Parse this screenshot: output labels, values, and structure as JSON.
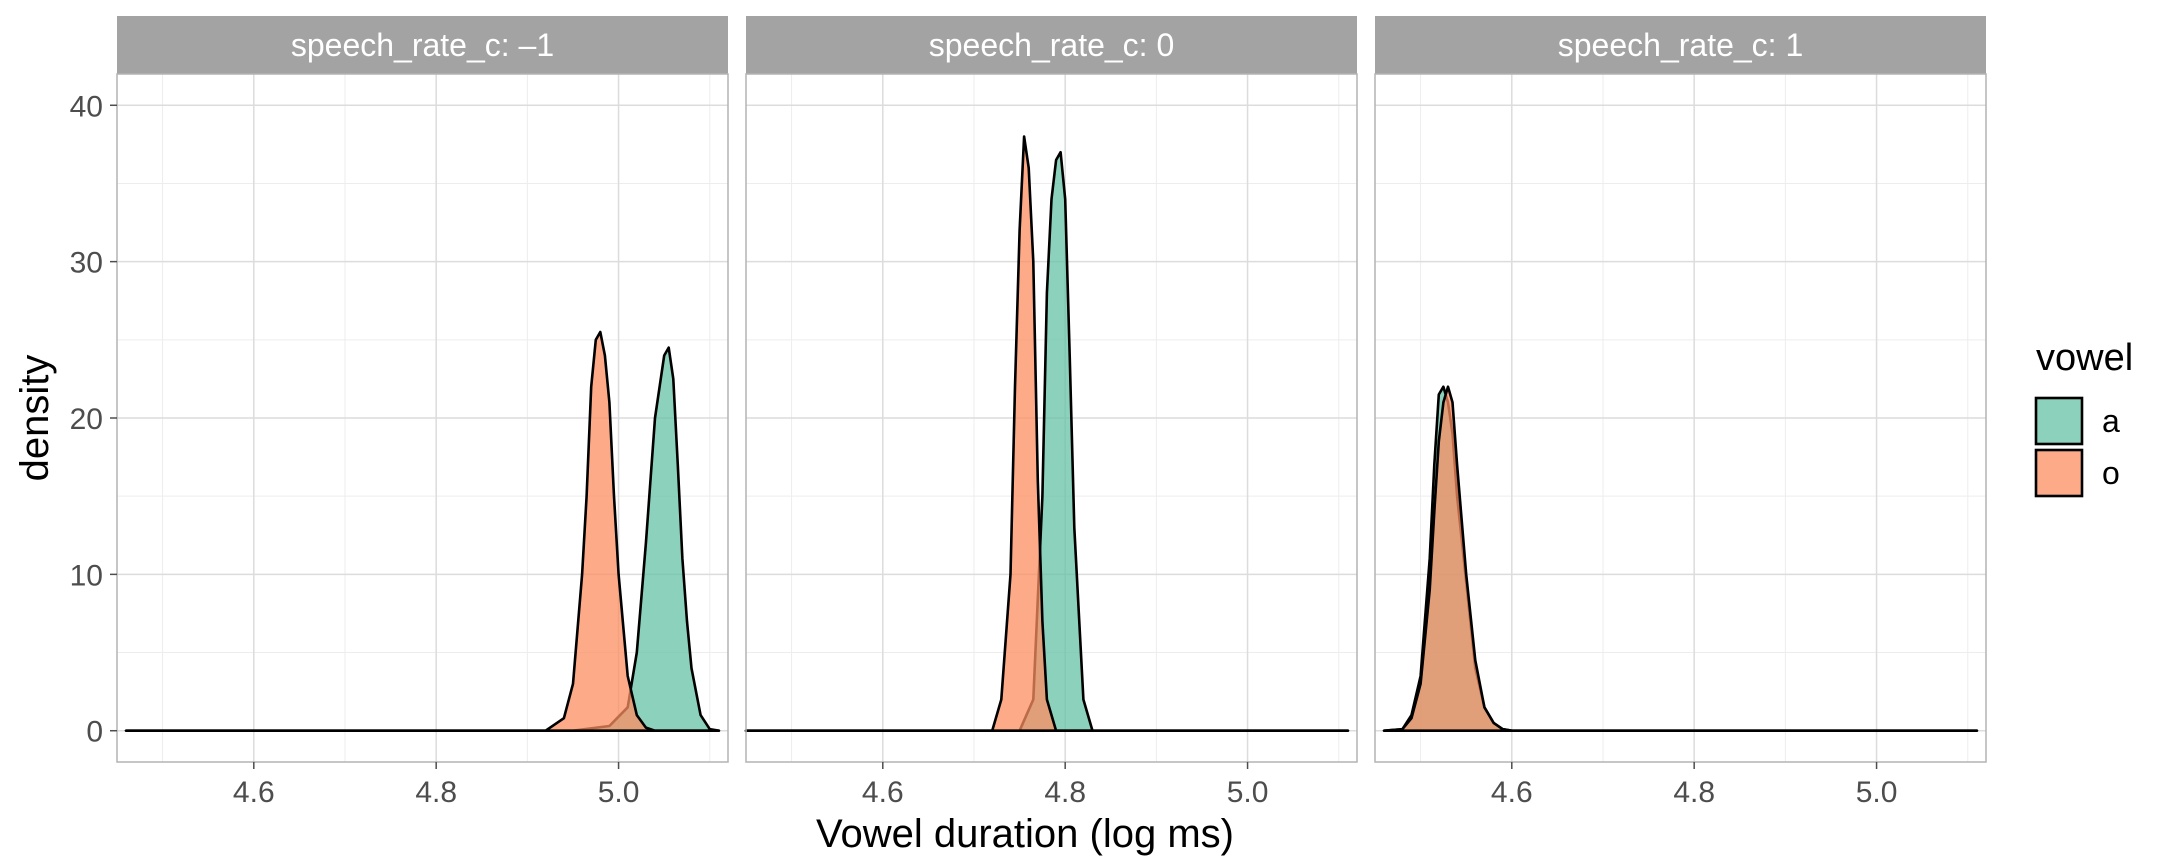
{
  "chart_data": {
    "type": "area",
    "subtype": "faceted density plot",
    "xlabel": "Vowel duration (log ms)",
    "ylabel": "density",
    "xlim": [
      4.45,
      5.12
    ],
    "ylim": [
      -2,
      42
    ],
    "x_ticks": [
      "4.6",
      "4.8",
      "5.0"
    ],
    "x_tick_values": [
      4.6,
      4.8,
      5.0
    ],
    "y_ticks": [
      "0",
      "10",
      "20",
      "30",
      "40"
    ],
    "y_tick_values": [
      0,
      10,
      20,
      30,
      40
    ],
    "grid": true,
    "legend": {
      "title": "vowel",
      "position": "right",
      "entries": [
        {
          "label": "a",
          "color": "#66C2A5"
        },
        {
          "label": "o",
          "color": "#FC8D62"
        }
      ]
    },
    "facets": [
      {
        "label": "speech_rate_c: –1",
        "series": [
          {
            "name": "a",
            "color": "#66C2A5",
            "x": [
              4.46,
              4.95,
              4.99,
              5.01,
              5.02,
              5.03,
              5.04,
              5.05,
              5.055,
              5.06,
              5.065,
              5.07,
              5.075,
              5.08,
              5.09,
              5.1,
              5.11
            ],
            "y": [
              0,
              0,
              0.3,
              1.5,
              5,
              12,
              20,
              24,
              24.5,
              22.5,
              17,
              11,
              7,
              4,
              1,
              0.1,
              0
            ]
          },
          {
            "name": "o",
            "color": "#FC8D62",
            "x": [
              4.46,
              4.92,
              4.94,
              4.95,
              4.96,
              4.965,
              4.97,
              4.975,
              4.98,
              4.985,
              4.99,
              4.995,
              5.0,
              5.01,
              5.02,
              5.03,
              5.04,
              5.11
            ],
            "y": [
              0,
              0,
              0.8,
              3,
              10,
              15,
              22,
              25,
              25.5,
              24,
              21,
              15,
              10,
              3.5,
              1,
              0.2,
              0,
              0
            ]
          }
        ]
      },
      {
        "label": "speech_rate_c: 0",
        "series": [
          {
            "name": "a",
            "color": "#66C2A5",
            "x": [
              4.45,
              4.75,
              4.765,
              4.775,
              4.78,
              4.785,
              4.79,
              4.795,
              4.8,
              4.805,
              4.81,
              4.82,
              4.83,
              5.11
            ],
            "y": [
              0,
              0,
              2,
              15,
              28,
              34,
              36.5,
              37,
              34,
              24,
              13,
              2,
              0,
              0
            ]
          },
          {
            "name": "o",
            "color": "#FC8D62",
            "x": [
              4.45,
              4.72,
              4.73,
              4.74,
              4.745,
              4.75,
              4.755,
              4.76,
              4.765,
              4.77,
              4.775,
              4.78,
              4.79,
              5.11
            ],
            "y": [
              0,
              0,
              2,
              10,
              22,
              32,
              38,
              36,
              30,
              16,
              7,
              2,
              0,
              0
            ]
          }
        ]
      },
      {
        "label": "speech_rate_c: 1",
        "series": [
          {
            "name": "a",
            "color": "#66C2A5",
            "x": [
              4.46,
              4.48,
              4.49,
              4.5,
              4.51,
              4.515,
              4.52,
              4.525,
              4.53,
              4.535,
              4.54,
              4.55,
              4.56,
              4.57,
              4.58,
              4.59,
              4.6,
              5.11
            ],
            "y": [
              0,
              0.1,
              1,
              3.5,
              11,
              17,
              21.5,
              22,
              21,
              19,
              15,
              9.5,
              4,
              1.5,
              0.5,
              0.1,
              0,
              0
            ]
          },
          {
            "name": "o",
            "color": "#FC8D62",
            "x": [
              4.46,
              4.48,
              4.49,
              4.5,
              4.51,
              4.515,
              4.52,
              4.525,
              4.53,
              4.535,
              4.54,
              4.55,
              4.56,
              4.57,
              4.58,
              4.59,
              4.6,
              5.11
            ],
            "y": [
              0,
              0.1,
              0.8,
              3,
              9,
              14,
              18.5,
              21,
              22,
              21,
              17,
              10,
              4.5,
              1.5,
              0.5,
              0.1,
              0,
              0
            ]
          }
        ]
      }
    ]
  }
}
